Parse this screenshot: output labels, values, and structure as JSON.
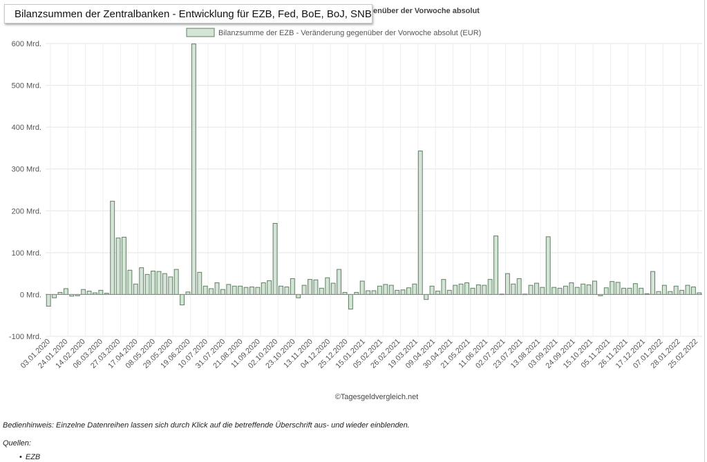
{
  "window": {
    "popup_title": "Bilanzsummen der Zentralbanken - Entwicklung für EZB, Fed, BoE, BoJ, SNB"
  },
  "footer": {
    "hint": "Bedienhinweis: Einzelne Datenreihen lassen sich durch Klick auf die betreffende Überschrift aus- und wieder einblenden.",
    "sources_label": "Quellen:",
    "sources": [
      "EZB"
    ]
  },
  "chart_data": {
    "type": "bar",
    "title_visible_part": "enüber der Vorwoche absolut",
    "credit": "©Tagesgeldvergleich.net",
    "grid": true,
    "legend_position": "top-center",
    "y_unit_suffix": " Mrd.",
    "ylim": [
      -100,
      600
    ],
    "yticks": [
      -100,
      0,
      100,
      200,
      300,
      400,
      500,
      600
    ],
    "x_tick_labels": [
      "03.01.2020",
      "24.01.2020",
      "14.02.2020",
      "06.03.2020",
      "27.03.2020",
      "17.04.2020",
      "08.05.2020",
      "29.05.2020",
      "19.06.2020",
      "10.07.2020",
      "31.07.2020",
      "21.08.2020",
      "11.09.2020",
      "02.10.2020",
      "23.10.2020",
      "13.11.2020",
      "04.12.2020",
      "25.12.2020",
      "15.01.2021",
      "05.02.2021",
      "26.02.2021",
      "19.03.2021",
      "09.04.2021",
      "30.04.2021",
      "21.05.2021",
      "11.06.2021",
      "02.07.2021",
      "23.07.2021",
      "13.08.2021",
      "03.09.2021",
      "24.09.2021",
      "15.10.2021",
      "05.11.2021",
      "26.11.2021",
      "17.12.2021",
      "07.01.2022",
      "28.01.2022",
      "25.02.2022"
    ],
    "series": [
      {
        "name": "Bilanzsumme der EZB - Veränderung gegenüber der Vorwoche absolut (EUR)",
        "fill_color": "#d4e4d6",
        "stroke_color": "#5f7f62",
        "values": [
          -28,
          -8,
          5,
          14,
          -4,
          -3,
          12,
          8,
          4,
          10,
          3,
          223,
          135,
          137,
          58,
          25,
          64,
          48,
          56,
          55,
          50,
          42,
          60,
          -25,
          6,
          599,
          53,
          20,
          14,
          28,
          12,
          24,
          20,
          20,
          17,
          18,
          17,
          28,
          33,
          170,
          20,
          18,
          38,
          -8,
          22,
          36,
          35,
          15,
          40,
          27,
          60,
          5,
          -35,
          5,
          32,
          9,
          9,
          20,
          24,
          22,
          10,
          11,
          16,
          25,
          343,
          -12,
          20,
          8,
          36,
          10,
          22,
          25,
          28,
          15,
          23,
          22,
          36,
          140,
          1,
          50,
          25,
          38,
          1,
          22,
          27,
          17,
          138,
          17,
          15,
          20,
          28,
          17,
          25,
          23,
          32,
          -3,
          16,
          31,
          29,
          15,
          15,
          26,
          15,
          2,
          55,
          7,
          22,
          7,
          20,
          10,
          22,
          18,
          4
        ]
      }
    ]
  }
}
